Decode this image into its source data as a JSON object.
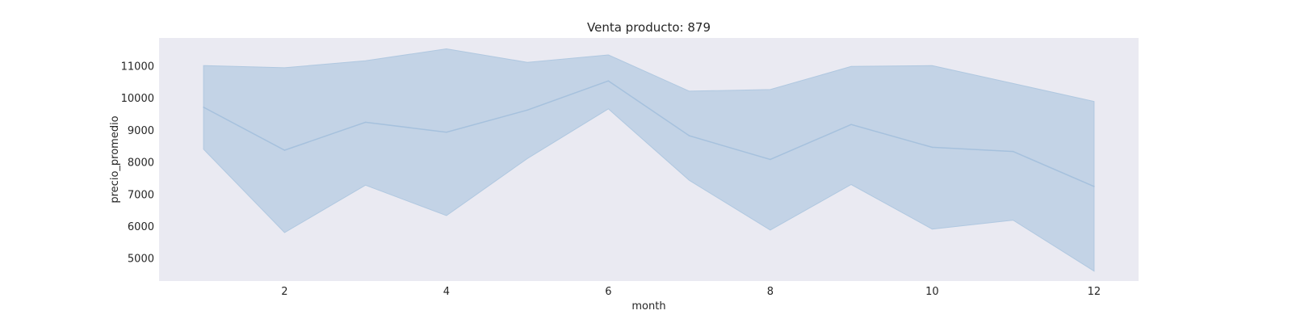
{
  "chart_data": {
    "type": "area",
    "title": "Venta producto: 879",
    "xlabel": "month",
    "ylabel": "precio_promedio",
    "x": [
      1,
      2,
      3,
      4,
      5,
      6,
      7,
      8,
      9,
      10,
      11,
      12
    ],
    "series": [
      {
        "values": [
          9720,
          8380,
          9250,
          8940,
          9630,
          10540,
          8830,
          8090,
          9180,
          8470,
          8340,
          7250
        ]
      }
    ],
    "band": {
      "upper": [
        11020,
        10950,
        11170,
        11540,
        11120,
        11350,
        10220,
        10270,
        10990,
        11020,
        10460,
        9900
      ],
      "lower": [
        8410,
        5810,
        7290,
        6340,
        8120,
        9670,
        7440,
        5890,
        7310,
        5920,
        6200,
        4610
      ]
    },
    "xticks": [
      2,
      4,
      6,
      8,
      10,
      12
    ],
    "yticks": [
      5000,
      6000,
      7000,
      8000,
      9000,
      10000,
      11000
    ],
    "xlim": [
      0.45,
      12.55
    ],
    "ylim": [
      4300,
      11880
    ],
    "grid": false,
    "legend": "none",
    "colors": {
      "plot_background": "#eaeaf2",
      "line": "#a6c1dd",
      "band_fill": "#a9c3dd",
      "band_edge": "#b0c8e0"
    }
  }
}
